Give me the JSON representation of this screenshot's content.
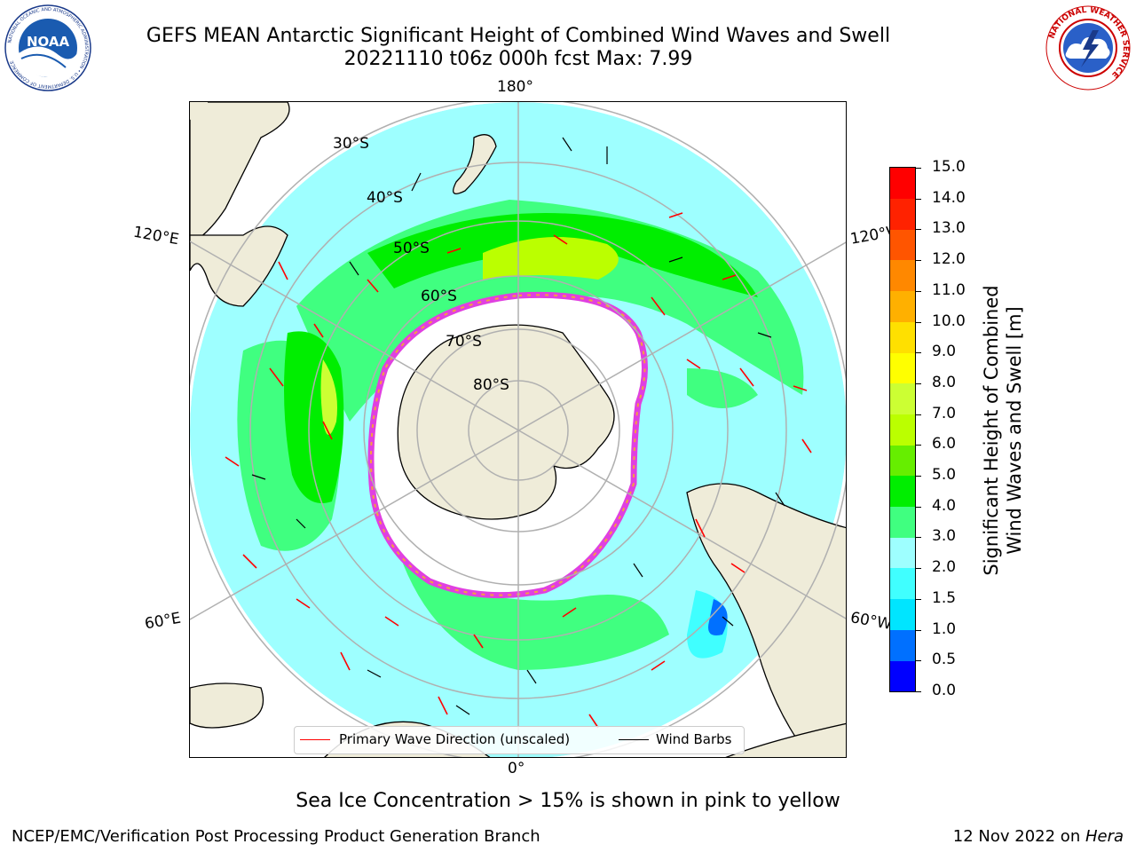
{
  "header": {
    "title_line1": "GEFS MEAN Antarctic Significant Height of Combined Wind Waves and Swell",
    "title_line2": "20221110 t06z 000h fcst   Max: 7.99",
    "noaa_text": "NOAA",
    "noaa_ring_text": "NATIONAL OCEANIC AND ATMOSPHERIC ADMINISTRATION • U.S. DEPARTMENT OF COMMERCE",
    "nws_ring_text": "NATIONAL WEATHER SERVICE"
  },
  "map": {
    "projection": "south-polar-stereographic",
    "longitude_labels": {
      "top": "180°",
      "bottom": "0°",
      "upper_left": "120°E",
      "upper_right": "120°W",
      "lower_left": "60°E",
      "lower_right": "60°W"
    },
    "latitude_labels": [
      "30°S",
      "40°S",
      "50°S",
      "60°S",
      "70°S",
      "80°S"
    ],
    "colors": {
      "land": "#efecd9",
      "coast": "#000000",
      "grid": "#b0b0b0",
      "sea_ice": "#e040e0",
      "sea_ice_edge": "#f4a040",
      "wave_arrow": "#ff0000",
      "wind_barb": "#000000"
    }
  },
  "legend": {
    "primary_wave": "Primary Wave Direction (unscaled)",
    "wind_barbs": "Wind Barbs",
    "primary_wave_color": "#ff0000",
    "wind_barbs_color": "#000000"
  },
  "colorbar": {
    "title_line1": "Significant Height of Combined",
    "title_line2": "Wind Waves and Swell [m]",
    "tick_labels": [
      "0.0",
      "0.5",
      "1.0",
      "1.5",
      "2.0",
      "3.0",
      "4.0",
      "5.0",
      "6.0",
      "7.0",
      "8.0",
      "9.0",
      "10.0",
      "11.0",
      "12.0",
      "13.0",
      "14.0",
      "15.0"
    ],
    "colors": [
      "#0000ff",
      "#0070ff",
      "#00e5ff",
      "#40ffff",
      "#9effff",
      "#40ff80",
      "#00ee00",
      "#66ee00",
      "#bbff00",
      "#ccff33",
      "#ffff00",
      "#ffe000",
      "#ffb000",
      "#ff8800",
      "#ff5500",
      "#ff2200",
      "#ff0000"
    ]
  },
  "footer": {
    "subtitle": "Sea Ice Concentration > 15% is shown in pink to yellow",
    "left": "NCEP/EMC/Verification Post Processing Product Generation Branch",
    "right_date": "12 Nov 2022 on ",
    "right_host": "Hera"
  }
}
